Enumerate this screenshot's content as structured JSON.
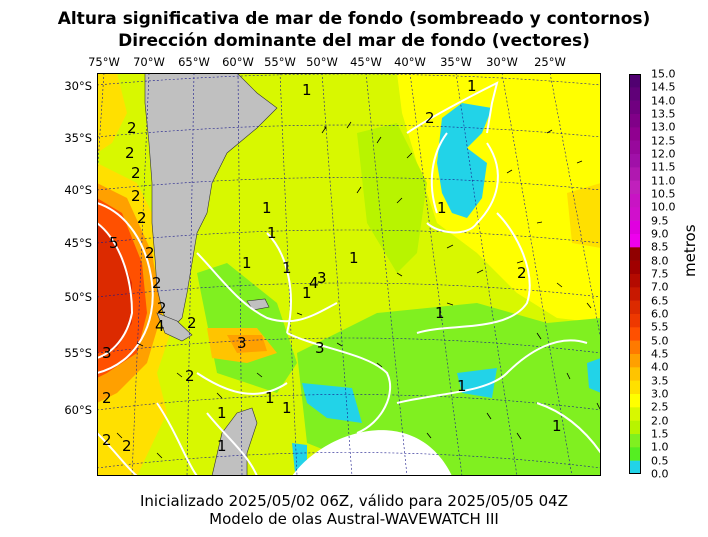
{
  "title": {
    "line1": "Altura significativa de mar de fondo (sombreado y contornos)",
    "line2": "Dirección dominante del mar de fondo (vectores)"
  },
  "lon_labels": [
    "75°W",
    "70°W",
    "65°W",
    "60°W",
    "55°W",
    "50°W",
    "45°W",
    "40°W",
    "35°W",
    "30°W",
    "25°W"
  ],
  "lat_labels": [
    "30°S",
    "35°S",
    "40°S",
    "45°S",
    "50°S",
    "55°S",
    "60°S"
  ],
  "colorbar": {
    "label": "metros",
    "ticks": [
      "15.0",
      "14.5",
      "14.0",
      "13.5",
      "13.0",
      "12.5",
      "12.0",
      "11.5",
      "11.0",
      "10.5",
      "10.0",
      "9.5",
      "9.0",
      "8.5",
      "8.0",
      "7.5",
      "7.0",
      "6.5",
      "6.0",
      "5.5",
      "5.0",
      "4.5",
      "4.0",
      "3.5",
      "3.0",
      "2.5",
      "2.0",
      "1.5",
      "1.0",
      "0.5",
      "0.0"
    ],
    "colors": {
      "0.0": "#22d3e8",
      "0.5": "#55ee22",
      "1.0": "#80f020",
      "1.5": "#b8f400",
      "2.0": "#d8f800",
      "2.5": "#ffff00",
      "3.0": "#ffe000",
      "3.5": "#ffc400",
      "4.0": "#ffa000",
      "4.5": "#ff7a00",
      "5.0": "#ff5000",
      "5.5": "#ee3800",
      "6.0": "#dc2a00",
      "6.5": "#c81800",
      "7.0": "#b40a00",
      "7.5": "#a00000",
      "8.0": "#900000",
      "8.5": "#ee00ee",
      "9.0": "#e000e0",
      "9.5": "#d010cc",
      "10.0": "#c814c4",
      "10.5": "#c020bc",
      "11.0": "#b018b0",
      "11.5": "#a010a8",
      "12.0": "#98089c",
      "12.5": "#900090",
      "13.0": "#800088",
      "13.5": "#700080",
      "14.0": "#600078",
      "14.5": "#500070"
    }
  },
  "map": {
    "land_color": "#c0c0c0",
    "contour_labels": [
      "1",
      "1",
      "2",
      "1",
      "2",
      "2",
      "2",
      "2",
      "2",
      "2",
      "5",
      "2",
      "2",
      "4",
      "2",
      "3",
      "1",
      "1",
      "1",
      "1",
      "4",
      "3",
      "1",
      "1",
      "3",
      "2",
      "1",
      "2",
      "1",
      "1",
      "3",
      "1",
      "2",
      "1",
      "1",
      "2",
      "2",
      "1"
    ]
  },
  "footer": {
    "line1": "Inicializado 2025/05/02 06Z, válido para 2025/05/05 04Z",
    "line2": "Modelo de olas Austral-WAVEWATCH III"
  }
}
